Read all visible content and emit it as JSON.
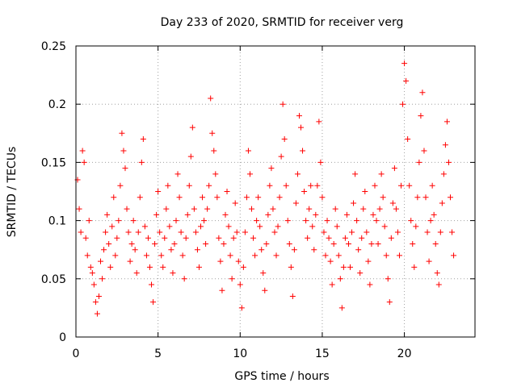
{
  "chart_data": {
    "type": "scatter",
    "title": "Day 233 of 2020, SRMTID for receiver verg",
    "xlabel": "GPS time / hours",
    "ylabel": "SRMTID / TECUs",
    "xlim": [
      0,
      24.3
    ],
    "ylim": [
      0,
      0.25
    ],
    "xticks": [
      0,
      5,
      10,
      15,
      20
    ],
    "xtick_labels": [
      "0",
      "5",
      "10",
      "15",
      "20"
    ],
    "yticks": [
      0,
      0.05,
      0.1,
      0.15,
      0.2,
      0.25
    ],
    "ytick_labels": [
      "0",
      "0.05",
      "0.1",
      "0.15",
      "0.2",
      "0.25"
    ],
    "grid": true,
    "marker": "+",
    "color": "#ff0000",
    "series": [
      {
        "name": "SRMTID",
        "points": [
          [
            0.1,
            0.135
          ],
          [
            0.2,
            0.11
          ],
          [
            0.3,
            0.09
          ],
          [
            0.4,
            0.16
          ],
          [
            0.5,
            0.15
          ],
          [
            0.6,
            0.085
          ],
          [
            0.7,
            0.07
          ],
          [
            0.8,
            0.1
          ],
          [
            0.9,
            0.06
          ],
          [
            1.0,
            0.055
          ],
          [
            1.1,
            0.045
          ],
          [
            1.2,
            0.03
          ],
          [
            1.3,
            0.02
          ],
          [
            1.4,
            0.035
          ],
          [
            1.5,
            0.065
          ],
          [
            1.6,
            0.05
          ],
          [
            1.7,
            0.075
          ],
          [
            1.8,
            0.09
          ],
          [
            1.9,
            0.105
          ],
          [
            2.0,
            0.08
          ],
          [
            2.1,
            0.06
          ],
          [
            2.2,
            0.095
          ],
          [
            2.3,
            0.12
          ],
          [
            2.4,
            0.07
          ],
          [
            2.5,
            0.085
          ],
          [
            2.6,
            0.1
          ],
          [
            2.7,
            0.13
          ],
          [
            2.8,
            0.175
          ],
          [
            2.9,
            0.16
          ],
          [
            3.0,
            0.145
          ],
          [
            3.1,
            0.11
          ],
          [
            3.2,
            0.09
          ],
          [
            3.3,
            0.065
          ],
          [
            3.4,
            0.08
          ],
          [
            3.5,
            0.1
          ],
          [
            3.6,
            0.075
          ],
          [
            3.7,
            0.055
          ],
          [
            3.8,
            0.09
          ],
          [
            3.9,
            0.12
          ],
          [
            4.0,
            0.15
          ],
          [
            4.1,
            0.17
          ],
          [
            4.2,
            0.095
          ],
          [
            4.3,
            0.07
          ],
          [
            4.4,
            0.085
          ],
          [
            4.5,
            0.06
          ],
          [
            4.6,
            0.045
          ],
          [
            4.7,
            0.03
          ],
          [
            4.8,
            0.08
          ],
          [
            4.9,
            0.105
          ],
          [
            5.0,
            0.125
          ],
          [
            5.1,
            0.09
          ],
          [
            5.2,
            0.07
          ],
          [
            5.3,
            0.06
          ],
          [
            5.4,
            0.085
          ],
          [
            5.5,
            0.11
          ],
          [
            5.6,
            0.13
          ],
          [
            5.7,
            0.095
          ],
          [
            5.8,
            0.075
          ],
          [
            5.9,
            0.055
          ],
          [
            6.0,
            0.08
          ],
          [
            6.1,
            0.1
          ],
          [
            6.2,
            0.14
          ],
          [
            6.3,
            0.12
          ],
          [
            6.4,
            0.09
          ],
          [
            6.5,
            0.07
          ],
          [
            6.6,
            0.05
          ],
          [
            6.7,
            0.085
          ],
          [
            6.8,
            0.105
          ],
          [
            6.9,
            0.13
          ],
          [
            7.0,
            0.155
          ],
          [
            7.1,
            0.18
          ],
          [
            7.2,
            0.11
          ],
          [
            7.3,
            0.09
          ],
          [
            7.4,
            0.075
          ],
          [
            7.5,
            0.06
          ],
          [
            7.6,
            0.095
          ],
          [
            7.7,
            0.12
          ],
          [
            7.8,
            0.1
          ],
          [
            7.9,
            0.08
          ],
          [
            8.0,
            0.11
          ],
          [
            8.1,
            0.13
          ],
          [
            8.2,
            0.205
          ],
          [
            8.3,
            0.175
          ],
          [
            8.4,
            0.16
          ],
          [
            8.5,
            0.14
          ],
          [
            8.6,
            0.12
          ],
          [
            8.7,
            0.085
          ],
          [
            8.8,
            0.065
          ],
          [
            8.9,
            0.04
          ],
          [
            9.0,
            0.08
          ],
          [
            9.1,
            0.105
          ],
          [
            9.2,
            0.125
          ],
          [
            9.3,
            0.095
          ],
          [
            9.4,
            0.07
          ],
          [
            9.5,
            0.05
          ],
          [
            9.6,
            0.085
          ],
          [
            9.7,
            0.115
          ],
          [
            9.8,
            0.09
          ],
          [
            9.9,
            0.065
          ],
          [
            10.0,
            0.045
          ],
          [
            10.1,
            0.025
          ],
          [
            10.2,
            0.06
          ],
          [
            10.3,
            0.09
          ],
          [
            10.4,
            0.12
          ],
          [
            10.5,
            0.16
          ],
          [
            10.6,
            0.14
          ],
          [
            10.7,
            0.11
          ],
          [
            10.8,
            0.085
          ],
          [
            10.9,
            0.07
          ],
          [
            11.0,
            0.1
          ],
          [
            11.1,
            0.12
          ],
          [
            11.2,
            0.095
          ],
          [
            11.3,
            0.075
          ],
          [
            11.4,
            0.055
          ],
          [
            11.5,
            0.04
          ],
          [
            11.6,
            0.08
          ],
          [
            11.7,
            0.105
          ],
          [
            11.8,
            0.13
          ],
          [
            11.9,
            0.145
          ],
          [
            12.0,
            0.11
          ],
          [
            12.1,
            0.09
          ],
          [
            12.2,
            0.07
          ],
          [
            12.3,
            0.095
          ],
          [
            12.4,
            0.12
          ],
          [
            12.5,
            0.155
          ],
          [
            12.6,
            0.2
          ],
          [
            12.7,
            0.17
          ],
          [
            12.8,
            0.13
          ],
          [
            12.9,
            0.1
          ],
          [
            13.0,
            0.08
          ],
          [
            13.1,
            0.06
          ],
          [
            13.2,
            0.035
          ],
          [
            13.3,
            0.075
          ],
          [
            13.4,
            0.115
          ],
          [
            13.5,
            0.14
          ],
          [
            13.6,
            0.19
          ],
          [
            13.7,
            0.18
          ],
          [
            13.8,
            0.16
          ],
          [
            13.9,
            0.125
          ],
          [
            14.0,
            0.1
          ],
          [
            14.1,
            0.085
          ],
          [
            14.2,
            0.11
          ],
          [
            14.3,
            0.13
          ],
          [
            14.4,
            0.095
          ],
          [
            14.5,
            0.075
          ],
          [
            14.6,
            0.105
          ],
          [
            14.7,
            0.13
          ],
          [
            14.8,
            0.185
          ],
          [
            14.9,
            0.15
          ],
          [
            15.0,
            0.12
          ],
          [
            15.1,
            0.09
          ],
          [
            15.2,
            0.07
          ],
          [
            15.3,
            0.1
          ],
          [
            15.4,
            0.085
          ],
          [
            15.5,
            0.065
          ],
          [
            15.6,
            0.045
          ],
          [
            15.7,
            0.08
          ],
          [
            15.8,
            0.11
          ],
          [
            15.9,
            0.095
          ],
          [
            16.0,
            0.07
          ],
          [
            16.1,
            0.05
          ],
          [
            16.2,
            0.025
          ],
          [
            16.3,
            0.06
          ],
          [
            16.4,
            0.085
          ],
          [
            16.5,
            0.105
          ],
          [
            16.6,
            0.08
          ],
          [
            16.7,
            0.06
          ],
          [
            16.8,
            0.09
          ],
          [
            16.9,
            0.115
          ],
          [
            17.0,
            0.14
          ],
          [
            17.1,
            0.1
          ],
          [
            17.2,
            0.075
          ],
          [
            17.3,
            0.055
          ],
          [
            17.4,
            0.085
          ],
          [
            17.5,
            0.11
          ],
          [
            17.6,
            0.125
          ],
          [
            17.7,
            0.09
          ],
          [
            17.8,
            0.065
          ],
          [
            17.9,
            0.045
          ],
          [
            18.0,
            0.08
          ],
          [
            18.1,
            0.105
          ],
          [
            18.2,
            0.13
          ],
          [
            18.3,
            0.1
          ],
          [
            18.4,
            0.08
          ],
          [
            18.5,
            0.11
          ],
          [
            18.6,
            0.14
          ],
          [
            18.7,
            0.12
          ],
          [
            18.8,
            0.095
          ],
          [
            18.9,
            0.07
          ],
          [
            19.0,
            0.05
          ],
          [
            19.1,
            0.03
          ],
          [
            19.2,
            0.085
          ],
          [
            19.3,
            0.115
          ],
          [
            19.4,
            0.145
          ],
          [
            19.5,
            0.11
          ],
          [
            19.6,
            0.09
          ],
          [
            19.7,
            0.07
          ],
          [
            19.8,
            0.13
          ],
          [
            19.9,
            0.2
          ],
          [
            20.0,
            0.235
          ],
          [
            20.1,
            0.22
          ],
          [
            20.2,
            0.17
          ],
          [
            20.3,
            0.13
          ],
          [
            20.4,
            0.1
          ],
          [
            20.5,
            0.08
          ],
          [
            20.6,
            0.06
          ],
          [
            20.7,
            0.095
          ],
          [
            20.8,
            0.12
          ],
          [
            20.9,
            0.15
          ],
          [
            21.0,
            0.19
          ],
          [
            21.1,
            0.21
          ],
          [
            21.2,
            0.16
          ],
          [
            21.3,
            0.12
          ],
          [
            21.4,
            0.09
          ],
          [
            21.5,
            0.065
          ],
          [
            21.6,
            0.1
          ],
          [
            21.7,
            0.13
          ],
          [
            21.8,
            0.105
          ],
          [
            21.9,
            0.08
          ],
          [
            22.0,
            0.055
          ],
          [
            22.1,
            0.045
          ],
          [
            22.2,
            0.09
          ],
          [
            22.3,
            0.115
          ],
          [
            22.4,
            0.14
          ],
          [
            22.5,
            0.165
          ],
          [
            22.6,
            0.185
          ],
          [
            22.7,
            0.15
          ],
          [
            22.8,
            0.12
          ],
          [
            22.9,
            0.09
          ],
          [
            23.0,
            0.07
          ]
        ]
      }
    ]
  }
}
